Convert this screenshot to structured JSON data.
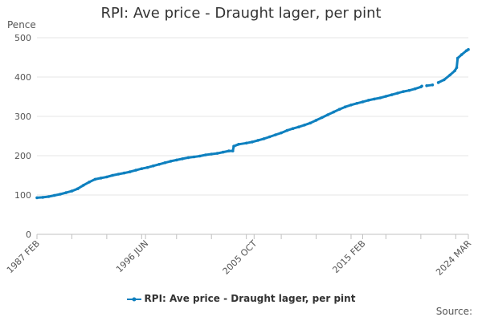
{
  "chart_data": {
    "type": "line",
    "title": "RPI: Ave price - Draught lager, per pint",
    "ylabel": "Pence",
    "xlabel": "",
    "ylim": [
      0,
      500
    ],
    "yticks": [
      0,
      100,
      200,
      300,
      400,
      500
    ],
    "xlim": [
      "1987-02",
      "2024-03"
    ],
    "xtick_labels": [
      "1987 FEB",
      "1996 JUN",
      "2005 OCT",
      "2015 FEB",
      "2024 MAR"
    ],
    "grid": "horizontal",
    "legend_position": "bottom",
    "color": "#0e80bf",
    "series": [
      {
        "name": "RPI: Ave price - Draught lager, per pint",
        "points": [
          [
            "1987-02",
            93
          ],
          [
            "1987-08",
            94
          ],
          [
            "1988-02",
            96
          ],
          [
            "1988-08",
            99
          ],
          [
            "1989-02",
            102
          ],
          [
            "1989-08",
            106
          ],
          [
            "1990-02",
            110
          ],
          [
            "1990-08",
            116
          ],
          [
            "1991-02",
            125
          ],
          [
            "1991-08",
            133
          ],
          [
            "1992-02",
            140
          ],
          [
            "1992-08",
            143
          ],
          [
            "1993-02",
            146
          ],
          [
            "1993-08",
            150
          ],
          [
            "1994-02",
            153
          ],
          [
            "1994-08",
            156
          ],
          [
            "1995-02",
            159
          ],
          [
            "1995-08",
            163
          ],
          [
            "1996-02",
            167
          ],
          [
            "1996-08",
            170
          ],
          [
            "1997-02",
            174
          ],
          [
            "1997-08",
            178
          ],
          [
            "1998-02",
            182
          ],
          [
            "1998-08",
            186
          ],
          [
            "1999-02",
            189
          ],
          [
            "1999-08",
            192
          ],
          [
            "2000-02",
            195
          ],
          [
            "2000-08",
            197
          ],
          [
            "2001-02",
            199
          ],
          [
            "2001-08",
            202
          ],
          [
            "2002-02",
            204
          ],
          [
            "2002-08",
            206
          ],
          [
            "2003-02",
            209
          ],
          [
            "2003-08",
            212
          ],
          [
            "2003-12",
            212
          ],
          [
            "2004-01",
            224
          ],
          [
            "2004-06",
            229
          ],
          [
            "2005-02",
            232
          ],
          [
            "2005-08",
            235
          ],
          [
            "2006-02",
            239
          ],
          [
            "2006-08",
            243
          ],
          [
            "2007-02",
            248
          ],
          [
            "2007-08",
            253
          ],
          [
            "2008-02",
            258
          ],
          [
            "2008-08",
            264
          ],
          [
            "2009-02",
            269
          ],
          [
            "2009-08",
            273
          ],
          [
            "2010-02",
            278
          ],
          [
            "2010-08",
            283
          ],
          [
            "2011-02",
            290
          ],
          [
            "2011-08",
            297
          ],
          [
            "2012-02",
            304
          ],
          [
            "2012-08",
            311
          ],
          [
            "2013-02",
            318
          ],
          [
            "2013-08",
            324
          ],
          [
            "2014-02",
            329
          ],
          [
            "2014-08",
            333
          ],
          [
            "2015-02",
            337
          ],
          [
            "2015-08",
            341
          ],
          [
            "2016-02",
            344
          ],
          [
            "2016-08",
            347
          ],
          [
            "2017-02",
            351
          ],
          [
            "2017-08",
            355
          ],
          [
            "2018-02",
            359
          ],
          [
            "2018-08",
            363
          ],
          [
            "2019-02",
            366
          ],
          [
            "2019-08",
            370
          ],
          [
            "2020-02",
            375
          ],
          [
            "2020-03",
            377
          ],
          null,
          [
            "2020-08",
            378
          ],
          [
            "2021-02",
            380
          ],
          null,
          [
            "2021-08",
            386
          ],
          [
            "2022-02",
            393
          ],
          [
            "2022-08",
            405
          ],
          [
            "2023-01",
            416
          ],
          [
            "2023-03",
            424
          ],
          [
            "2023-04",
            448
          ],
          [
            "2023-08",
            457
          ],
          [
            "2024-01",
            467
          ],
          [
            "2024-03",
            470
          ]
        ]
      }
    ],
    "source_label": "Source:"
  }
}
